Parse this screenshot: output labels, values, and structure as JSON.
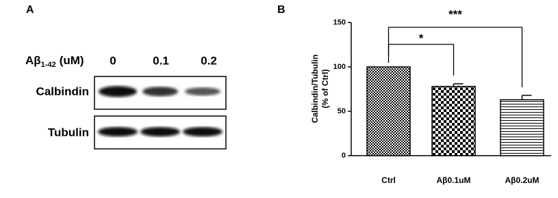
{
  "blot": {
    "panel_label": "A",
    "treatment": {
      "name": "Aβ",
      "sub": "1-42",
      "unit": "(uM)"
    },
    "lanes": [
      "0",
      "0.1",
      "0.2"
    ],
    "rows": [
      "Calbindin",
      "Tubulin"
    ]
  },
  "chart_data": {
    "type": "bar",
    "panel_label": "B",
    "ylabel": [
      "Calbindin/Tubulin",
      "(% of Ctrl)"
    ],
    "categories": [
      "Ctrl",
      "Aβ0.1uM",
      "Aβ0.2uM"
    ],
    "values": [
      100,
      78,
      63
    ],
    "errors": [
      0,
      3,
      5
    ],
    "color": "#000000",
    "ylim": [
      0,
      150
    ],
    "yticks": [
      0,
      50,
      100,
      150
    ],
    "annotations": [
      "*",
      "***"
    ]
  }
}
